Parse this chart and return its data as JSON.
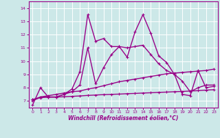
{
  "xlabel": "Windchill (Refroidissement éolien,°C)",
  "xlim": [
    -0.5,
    23.5
  ],
  "ylim": [
    6.5,
    14.5
  ],
  "yticks": [
    7,
    8,
    9,
    10,
    11,
    12,
    13,
    14
  ],
  "xticks": [
    0,
    1,
    2,
    3,
    4,
    5,
    6,
    7,
    8,
    9,
    10,
    11,
    12,
    13,
    14,
    15,
    16,
    17,
    18,
    19,
    20,
    21,
    22,
    23
  ],
  "bg_color": "#cce8e8",
  "line_color": "#990088",
  "grid_color": "#ffffff",
  "series": [
    {
      "x": [
        0,
        1,
        2,
        3,
        4,
        5,
        6,
        7,
        8,
        9,
        10,
        11,
        12,
        13,
        14,
        15,
        16,
        17,
        18,
        19,
        20,
        21,
        22,
        23
      ],
      "y": [
        6.7,
        8.0,
        7.3,
        7.3,
        7.5,
        7.9,
        9.2,
        13.5,
        11.5,
        11.7,
        11.1,
        11.1,
        10.3,
        12.2,
        13.5,
        12.1,
        10.4,
        9.9,
        9.0,
        7.5,
        7.4,
        9.3,
        8.0,
        8.1
      ]
    },
    {
      "x": [
        0,
        1,
        2,
        3,
        4,
        5,
        6,
        7,
        8,
        9,
        10,
        11,
        12,
        13,
        14,
        15,
        16,
        17,
        18,
        19,
        20,
        21,
        22,
        23
      ],
      "y": [
        7.0,
        7.3,
        7.3,
        7.3,
        7.5,
        7.7,
        8.2,
        11.0,
        8.3,
        9.5,
        10.5,
        11.1,
        11.0,
        11.1,
        11.2,
        10.5,
        9.8,
        9.3,
        9.0,
        8.5,
        7.7,
        8.0,
        8.2,
        8.2
      ]
    },
    {
      "x": [
        0,
        1,
        2,
        3,
        4,
        5,
        6,
        7,
        8,
        9,
        10,
        11,
        12,
        13,
        14,
        15,
        16,
        17,
        18,
        19,
        20,
        21,
        22,
        23
      ],
      "y": [
        7.1,
        7.3,
        7.4,
        7.5,
        7.6,
        7.7,
        7.75,
        7.9,
        8.0,
        8.15,
        8.3,
        8.45,
        8.55,
        8.65,
        8.75,
        8.85,
        8.95,
        9.05,
        9.1,
        9.15,
        9.2,
        9.25,
        9.3,
        9.4
      ]
    },
    {
      "x": [
        0,
        1,
        2,
        3,
        4,
        5,
        6,
        7,
        8,
        9,
        10,
        11,
        12,
        13,
        14,
        15,
        16,
        17,
        18,
        19,
        20,
        21,
        22,
        23
      ],
      "y": [
        7.1,
        7.25,
        7.3,
        7.3,
        7.32,
        7.35,
        7.38,
        7.42,
        7.45,
        7.48,
        7.5,
        7.52,
        7.55,
        7.57,
        7.6,
        7.62,
        7.65,
        7.67,
        7.7,
        7.72,
        7.75,
        7.78,
        7.82,
        7.85
      ]
    }
  ]
}
